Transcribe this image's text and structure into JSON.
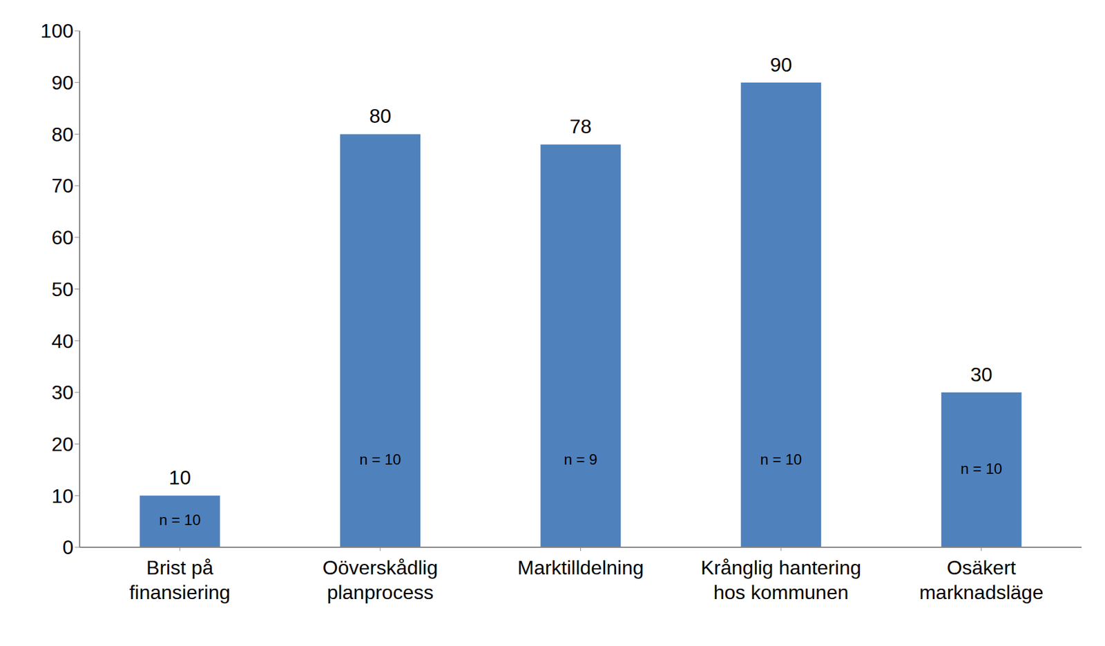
{
  "chart_data": {
    "type": "bar",
    "categories": [
      "Brist på finansiering",
      "Oöverskådlig planprocess",
      "Marktilldelning",
      "Krånglig hantering hos kommunen",
      "Osäkert marknadsläge"
    ],
    "values": [
      10,
      80,
      78,
      90,
      30
    ],
    "annotations": [
      "n = 10",
      "n = 10",
      "n = 9",
      "n = 10",
      "n = 10"
    ],
    "color": "#4f81bd",
    "ylim": [
      0,
      100
    ],
    "yticks": [
      0,
      10,
      20,
      30,
      40,
      50,
      60,
      70,
      80,
      90,
      100
    ],
    "grid": false,
    "data_labels": true
  }
}
